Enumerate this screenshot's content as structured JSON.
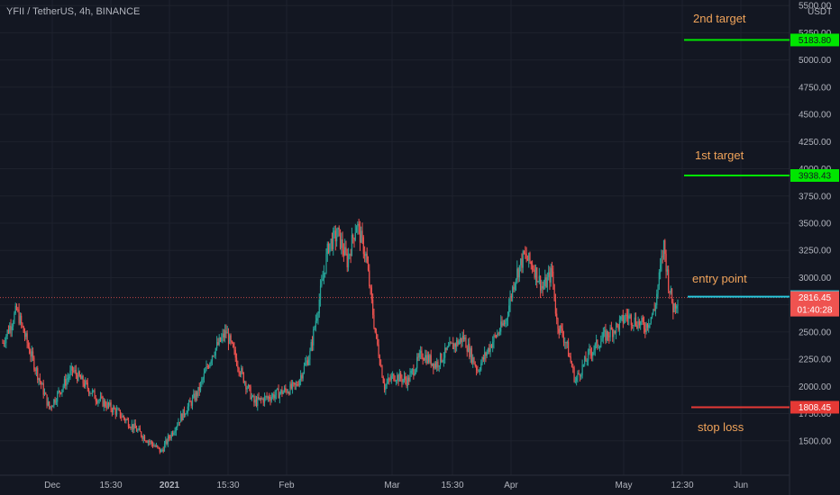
{
  "title": "YFII / TetherUS, 4h, BINANCE",
  "currency": "USDT",
  "colors": {
    "background": "#131722",
    "grid": "#1e222d",
    "up": "#26a69a",
    "down": "#ef5350",
    "target": "#00e600",
    "entry": "#26c6da",
    "stop": "#e53935",
    "annotation": "#f0a35a"
  },
  "chart_data": {
    "type": "candlestick",
    "x_ticks": [
      "Dec",
      "15:30",
      "2021",
      "15:30",
      "Feb",
      "Mar",
      "15:30",
      "Apr",
      "May",
      "12:30",
      "Jun"
    ],
    "y_ticks": [
      "5500.00",
      "5250.00",
      "5000.00",
      "4750.00",
      "4500.00",
      "4250.00",
      "4000.00",
      "3750.00",
      "3500.00",
      "3250.00",
      "3000.00",
      "2750.00",
      "2500.00",
      "2250.00",
      "2000.00",
      "1750.00",
      "1500.00"
    ],
    "ylim": [
      1250,
      5510
    ],
    "price_anchors": [
      [
        0,
        2400
      ],
      [
        3,
        2700
      ],
      [
        6,
        2300
      ],
      [
        10,
        1800
      ],
      [
        15,
        2150
      ],
      [
        20,
        1900
      ],
      [
        25,
        1750
      ],
      [
        30,
        1550
      ],
      [
        34,
        1400
      ],
      [
        38,
        1700
      ],
      [
        42,
        1950
      ],
      [
        45,
        2300
      ],
      [
        48,
        2500
      ],
      [
        51,
        2150
      ],
      [
        54,
        1850
      ],
      [
        57,
        1900
      ],
      [
        60,
        1950
      ],
      [
        63,
        2000
      ],
      [
        66,
        2300
      ],
      [
        68,
        2800
      ],
      [
        70,
        3300
      ],
      [
        72,
        3400
      ],
      [
        74,
        3150
      ],
      [
        76,
        3500
      ],
      [
        78,
        3200
      ],
      [
        80,
        2500
      ],
      [
        82,
        2000
      ],
      [
        84,
        2100
      ],
      [
        87,
        2050
      ],
      [
        90,
        2300
      ],
      [
        93,
        2200
      ],
      [
        96,
        2350
      ],
      [
        99,
        2450
      ],
      [
        102,
        2150
      ],
      [
        105,
        2400
      ],
      [
        108,
        2600
      ],
      [
        110,
        3000
      ],
      [
        112,
        3200
      ],
      [
        114,
        3100
      ],
      [
        116,
        2900
      ],
      [
        118,
        3050
      ],
      [
        119,
        2600
      ],
      [
        121,
        2400
      ],
      [
        123,
        2050
      ],
      [
        126,
        2300
      ],
      [
        129,
        2450
      ],
      [
        132,
        2550
      ],
      [
        134,
        2650
      ],
      [
        136,
        2600
      ],
      [
        138,
        2550
      ],
      [
        140,
        2700
      ],
      [
        142,
        3300
      ],
      [
        143,
        2950
      ],
      [
        144,
        2720
      ],
      [
        145,
        2815
      ]
    ],
    "annotations": [
      {
        "text": "2nd target",
        "price": 5183.8,
        "label": "5183.80",
        "kind": "target"
      },
      {
        "text": "1st target",
        "price": 3938.43,
        "label": "3938.43",
        "kind": "target"
      },
      {
        "text": "entry point",
        "price": 2825.23,
        "label": "2825.23",
        "kind": "entry"
      },
      {
        "text": "stop loss",
        "price": 1808.45,
        "label": "1808.45",
        "kind": "stop"
      }
    ],
    "last_price": {
      "value": 2816.45,
      "label": "2816.45",
      "countdown": "01:40:28"
    }
  }
}
